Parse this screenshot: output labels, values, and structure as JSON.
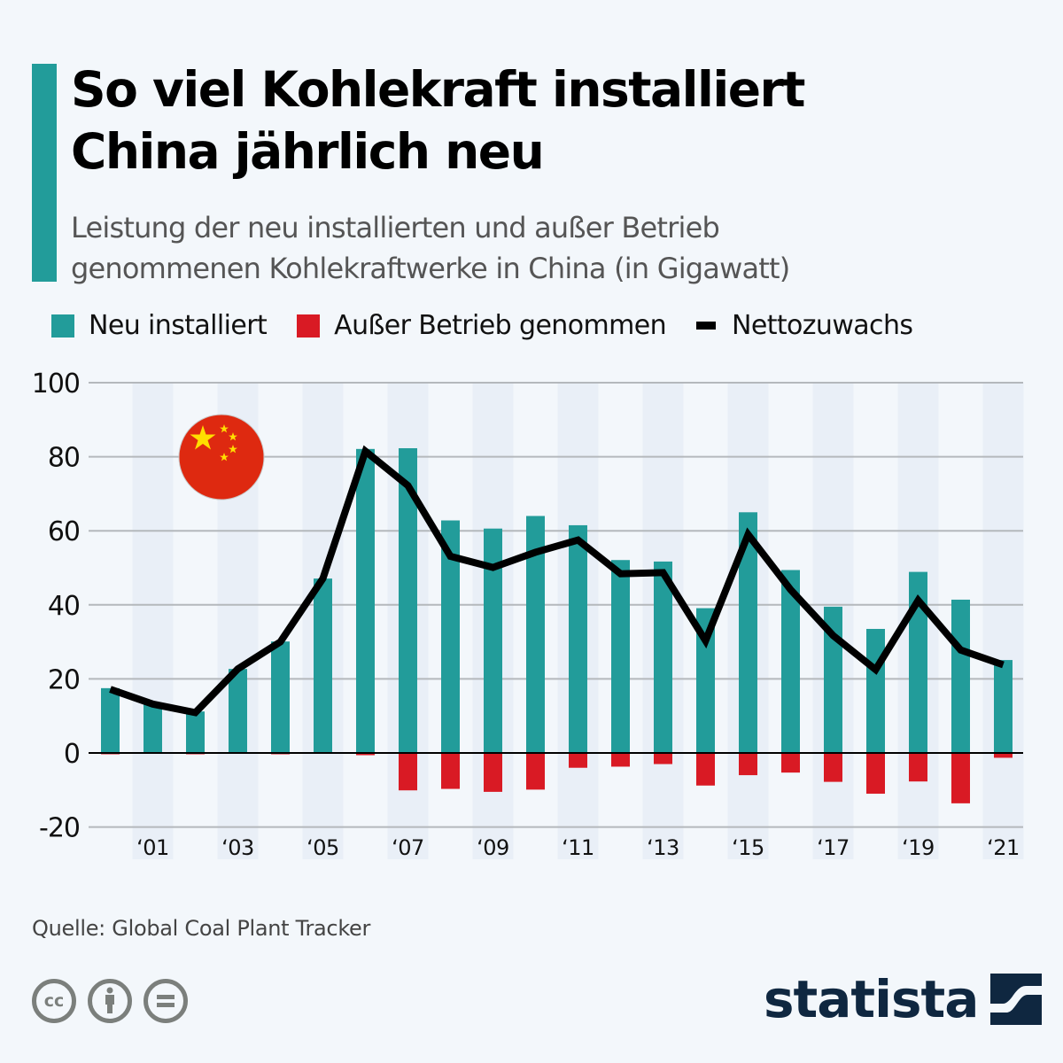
{
  "header": {
    "title_line1": "So viel Kohlekraft installiert",
    "title_line2": "China jährlich neu",
    "subtitle_line1": "Leistung der neu installierten und außer Betrieb",
    "subtitle_line2": "genommenen Kohlekraftwerke in China (in Gigawatt)"
  },
  "legend": [
    {
      "label": "Neu installiert",
      "color": "#229c9a"
    },
    {
      "label": "Außer Betrieb genommen",
      "color": "#d91a24"
    },
    {
      "label": "Nettozuwachs",
      "color": "#000000"
    }
  ],
  "footer": {
    "source": "Quelle: Global Coal Plant Tracker",
    "license_icons": [
      "cc-icon",
      "attribution-icon",
      "no-derivatives-icon"
    ],
    "brand": "statista"
  },
  "colors": {
    "accent": "#229c9a",
    "installed": "#229c9a",
    "retired": "#d91a24",
    "net": "#000000",
    "band": "#e9eff7",
    "grid": "#b4b8bc"
  },
  "chart_data": {
    "type": "bar",
    "title": "So viel Kohlekraft installiert China jährlich neu",
    "subtitle": "Leistung der neu installierten und außer Betrieb genommenen Kohlekraftwerke in China (in Gigawatt)",
    "xlabel": "",
    "ylabel": "Gigawatt",
    "ylim": [
      -20,
      100
    ],
    "yticks": [
      100,
      80,
      60,
      40,
      20,
      0,
      -20
    ],
    "grid": true,
    "legend_position": "top",
    "categories": [
      "2000",
      "2001",
      "2002",
      "2003",
      "2004",
      "2005",
      "2006",
      "2007",
      "2008",
      "2009",
      "2010",
      "2011",
      "2012",
      "2013",
      "2014",
      "2015",
      "2016",
      "2017",
      "2018",
      "2019",
      "2020",
      "2021"
    ],
    "xtick_labels": [
      "",
      "‘01",
      "",
      "‘03",
      "",
      "‘05",
      "",
      "‘07",
      "",
      "‘09",
      "",
      "‘11",
      "",
      "‘13",
      "",
      "‘15",
      "",
      "‘17",
      "",
      "‘19",
      "",
      "‘21"
    ],
    "series": [
      {
        "name": "Neu installiert",
        "type": "bar",
        "values": [
          17.5,
          13.2,
          11.2,
          22.7,
          30.1,
          47.1,
          82.1,
          82.3,
          62.8,
          60.6,
          64.0,
          61.5,
          52.1,
          51.7,
          39.1,
          65.0,
          49.4,
          39.5,
          33.5,
          48.9,
          41.4,
          25.1
        ]
      },
      {
        "name": "Außer Betrieb genommen",
        "type": "bar",
        "values": [
          -0.3,
          0,
          -0.3,
          0,
          -0.2,
          0,
          -0.6,
          -10.1,
          -9.7,
          -10.5,
          -9.9,
          -4.0,
          -3.7,
          -3.0,
          -8.8,
          -6.0,
          -5.3,
          -7.8,
          -11.0,
          -7.7,
          -13.6,
          -1.3
        ]
      },
      {
        "name": "Nettozuwachs",
        "type": "line",
        "values": [
          17.2,
          13.2,
          10.9,
          22.7,
          30.0,
          47.1,
          81.5,
          72.2,
          53.1,
          50.1,
          54.2,
          57.5,
          48.4,
          48.7,
          30.3,
          59.0,
          44.1,
          31.7,
          22.5,
          41.2,
          27.8,
          23.8
        ]
      }
    ],
    "annotations": [
      "china-flag-icon"
    ]
  }
}
